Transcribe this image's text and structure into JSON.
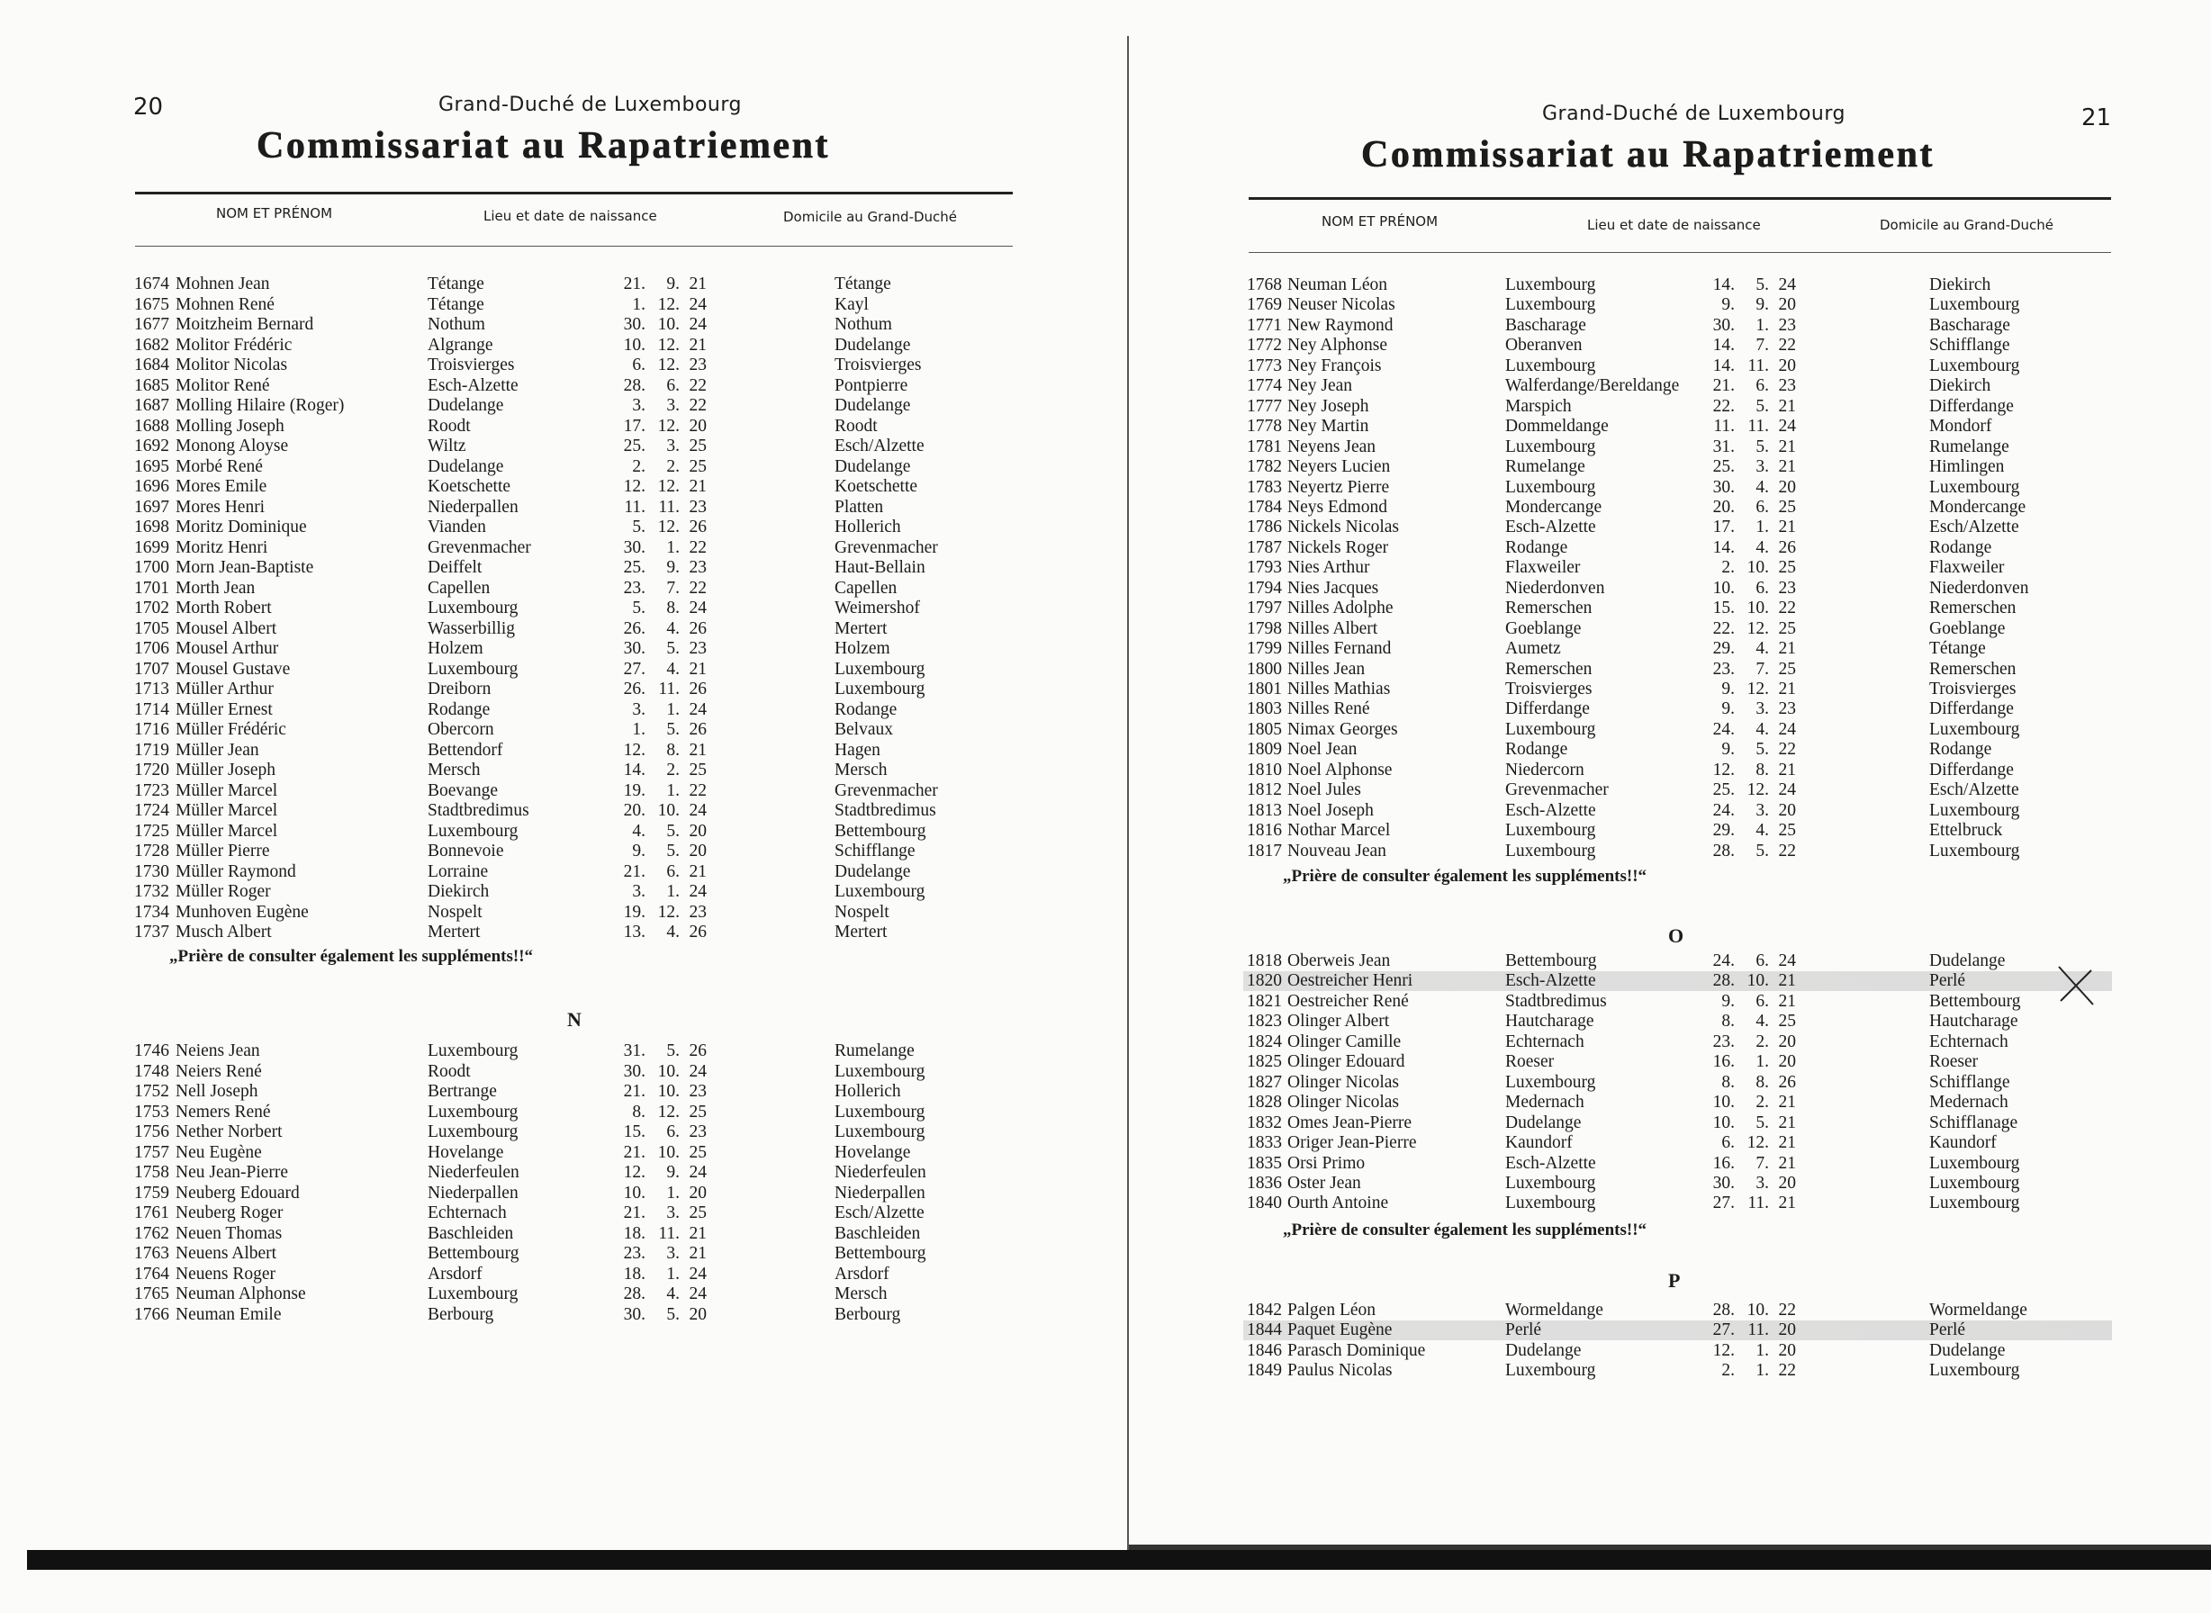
{
  "left_page": {
    "page_number": "20",
    "country": "Grand-Duché de Luxembourg",
    "title": "Commissariat au Rapatriement",
    "columns": [
      "NOM ET PRÉNOM",
      "Lieu et date de naissance",
      "Domicile au Grand-Duché"
    ],
    "sections": [
      {
        "letter": "",
        "rows": [
          [
            "1674",
            "Mohnen Jean",
            "Tétange",
            "21. 9. 21",
            "Tétange"
          ],
          [
            "1675",
            "Mohnen René",
            "Tétange",
            "1. 12. 24",
            "Kayl"
          ],
          [
            "1677",
            "Moitzheim Bernard",
            "Nothum",
            "30. 10. 24",
            "Nothum"
          ],
          [
            "1682",
            "Molitor Frédéric",
            "Algrange",
            "10. 12. 21",
            "Dudelange"
          ],
          [
            "1684",
            "Molitor Nicolas",
            "Troisvierges",
            "6. 12. 23",
            "Troisvierges"
          ],
          [
            "1685",
            "Molitor René",
            "Esch-Alzette",
            "28. 6. 22",
            "Pontpierre"
          ],
          [
            "1687",
            "Molling Hilaire (Roger)",
            "Dudelange",
            "3. 3. 22",
            "Dudelange"
          ],
          [
            "1688",
            "Molling Joseph",
            "Roodt",
            "17. 12. 20",
            "Roodt"
          ],
          [
            "1692",
            "Monong Aloyse",
            "Wiltz",
            "25. 3. 25",
            "Esch/Alzette"
          ],
          [
            "1695",
            "Morbé René",
            "Dudelange",
            "2. 2. 25",
            "Dudelange"
          ],
          [
            "1696",
            "Mores Emile",
            "Koetschette",
            "12. 12. 21",
            "Koetschette"
          ],
          [
            "1697",
            "Mores Henri",
            "Niederpallen",
            "11. 11. 23",
            "Platten"
          ],
          [
            "1698",
            "Moritz Dominique",
            "Vianden",
            "5. 12. 26",
            "Hollerich"
          ],
          [
            "1699",
            "Moritz Henri",
            "Grevenmacher",
            "30. 1. 22",
            "Grevenmacher"
          ],
          [
            "1700",
            "Morn Jean-Baptiste",
            "Deiffelt",
            "25. 9. 23",
            "Haut-Bellain"
          ],
          [
            "1701",
            "Morth Jean",
            "Capellen",
            "23. 7. 22",
            "Capellen"
          ],
          [
            "1702",
            "Morth Robert",
            "Luxembourg",
            "5. 8. 24",
            "Weimershof"
          ],
          [
            "1705",
            "Mousel Albert",
            "Wasserbillig",
            "26. 4. 26",
            "Mertert"
          ],
          [
            "1706",
            "Mousel Arthur",
            "Holzem",
            "30. 5. 23",
            "Holzem"
          ],
          [
            "1707",
            "Mousel Gustave",
            "Luxembourg",
            "27. 4. 21",
            "Luxembourg"
          ],
          [
            "1713",
            "Müller Arthur",
            "Dreiborn",
            "26. 11. 26",
            "Luxembourg"
          ],
          [
            "1714",
            "Müller Ernest",
            "Rodange",
            "3. 1. 24",
            "Rodange"
          ],
          [
            "1716",
            "Müller Frédéric",
            "Obercorn",
            "1. 5. 26",
            "Belvaux"
          ],
          [
            "1719",
            "Müller Jean",
            "Bettendorf",
            "12. 8. 21",
            "Hagen"
          ],
          [
            "1720",
            "Müller Joseph",
            "Mersch",
            "14. 2. 25",
            "Mersch"
          ],
          [
            "1723",
            "Müller Marcel",
            "Boevange",
            "19. 1. 22",
            "Grevenmacher"
          ],
          [
            "1724",
            "Müller Marcel",
            "Stadtbredimus",
            "20. 10. 24",
            "Stadtbredimus"
          ],
          [
            "1725",
            "Müller Marcel",
            "Luxembourg",
            "4. 5. 20",
            "Bettembourg"
          ],
          [
            "1728",
            "Müller Pierre",
            "Bonnevoie",
            "9. 5. 20",
            "Schifflange"
          ],
          [
            "1730",
            "Müller Raymond",
            "Lorraine",
            "21. 6. 21",
            "Dudelange"
          ],
          [
            "1732",
            "Müller Roger",
            "Diekirch",
            "3. 1. 24",
            "Luxembourg"
          ],
          [
            "1734",
            "Munhoven Eugène",
            "Nospelt",
            "19. 12. 23",
            "Nospelt"
          ],
          [
            "1737",
            "Musch Albert",
            "Mertert",
            "13. 4. 26",
            "Mertert"
          ]
        ],
        "note": "„Prière de consulter également les suppléments!!“"
      },
      {
        "letter": "N",
        "rows": [
          [
            "1746",
            "Neiens Jean",
            "Luxembourg",
            "31. 5. 26",
            "Rumelange"
          ],
          [
            "1748",
            "Neiers René",
            "Roodt",
            "30. 10. 24",
            "Luxembourg"
          ],
          [
            "1752",
            "Nell Joseph",
            "Bertrange",
            "21. 10. 23",
            "Hollerich"
          ],
          [
            "1753",
            "Nemers René",
            "Luxembourg",
            "8. 12. 25",
            "Luxembourg"
          ],
          [
            "1756",
            "Nether Norbert",
            "Luxembourg",
            "15. 6. 23",
            "Luxembourg"
          ],
          [
            "1757",
            "Neu Eugène",
            "Hovelange",
            "21. 10. 25",
            "Hovelange"
          ],
          [
            "1758",
            "Neu Jean-Pierre",
            "Niederfeulen",
            "12. 9. 24",
            "Niederfeulen"
          ],
          [
            "1759",
            "Neuberg Edouard",
            "Niederpallen",
            "10. 1. 20",
            "Niederpallen"
          ],
          [
            "1761",
            "Neuberg Roger",
            "Echternach",
            "21. 3. 25",
            "Esch/Alzette"
          ],
          [
            "1762",
            "Neuen Thomas",
            "Baschleiden",
            "18. 11. 21",
            "Baschleiden"
          ],
          [
            "1763",
            "Neuens Albert",
            "Bettembourg",
            "23. 3. 21",
            "Bettembourg"
          ],
          [
            "1764",
            "Neuens Roger",
            "Arsdorf",
            "18. 1. 24",
            "Arsdorf"
          ],
          [
            "1765",
            "Neuman Alphonse",
            "Luxembourg",
            "28. 4. 24",
            "Mersch"
          ],
          [
            "1766",
            "Neuman Emile",
            "Berbourg",
            "30. 5. 20",
            "Berbourg"
          ]
        ],
        "note": ""
      }
    ]
  },
  "right_page": {
    "page_number": "21",
    "country": "Grand-Duché de Luxembourg",
    "title": "Commissariat au Rapatriement",
    "columns": [
      "NOM ET PRÉNOM",
      "Lieu et date de naissance",
      "Domicile au Grand-Duché"
    ],
    "sections": [
      {
        "letter": "",
        "rows": [
          [
            "1768",
            "Neuman Léon",
            "Luxembourg",
            "14. 5. 24",
            "Diekirch"
          ],
          [
            "1769",
            "Neuser Nicolas",
            "Luxembourg",
            "9. 9. 20",
            "Luxembourg"
          ],
          [
            "1771",
            "New Raymond",
            "Bascharage",
            "30. 1. 23",
            "Bascharage"
          ],
          [
            "1772",
            "Ney Alphonse",
            "Oberanven",
            "14. 7. 22",
            "Schifflange"
          ],
          [
            "1773",
            "Ney François",
            "Luxembourg",
            "14. 11. 20",
            "Luxembourg"
          ],
          [
            "1774",
            "Ney Jean",
            "Walferdange/Bereldange",
            "21. 6. 23",
            "Diekirch"
          ],
          [
            "1777",
            "Ney Joseph",
            "Marspich",
            "22. 5. 21",
            "Differdange"
          ],
          [
            "1778",
            "Ney Martin",
            "Dommeldange",
            "11. 11. 24",
            "Mondorf"
          ],
          [
            "1781",
            "Neyens Jean",
            "Luxembourg",
            "31. 5. 21",
            "Rumelange"
          ],
          [
            "1782",
            "Neyers Lucien",
            "Rumelange",
            "25. 3. 21",
            "Himlingen"
          ],
          [
            "1783",
            "Neyertz Pierre",
            "Luxembourg",
            "30. 4. 20",
            "Luxembourg"
          ],
          [
            "1784",
            "Neys Edmond",
            "Mondercange",
            "20. 6. 25",
            "Mondercange"
          ],
          [
            "1786",
            "Nickels Nicolas",
            "Esch-Alzette",
            "17. 1. 21",
            "Esch/Alzette"
          ],
          [
            "1787",
            "Nickels Roger",
            "Rodange",
            "14. 4. 26",
            "Rodange"
          ],
          [
            "1793",
            "Nies Arthur",
            "Flaxweiler",
            "2. 10. 25",
            "Flaxweiler"
          ],
          [
            "1794",
            "Nies Jacques",
            "Niederdonven",
            "10. 6. 23",
            "Niederdonven"
          ],
          [
            "1797",
            "Nilles Adolphe",
            "Remerschen",
            "15. 10. 22",
            "Remerschen"
          ],
          [
            "1798",
            "Nilles Albert",
            "Goeblange",
            "22. 12. 25",
            "Goeblange"
          ],
          [
            "1799",
            "Nilles Fernand",
            "Aumetz",
            "29. 4. 21",
            "Tétange"
          ],
          [
            "1800",
            "Nilles Jean",
            "Remerschen",
            "23. 7. 25",
            "Remerschen"
          ],
          [
            "1801",
            "Nilles Mathias",
            "Troisvierges",
            "9. 12. 21",
            "Troisvierges"
          ],
          [
            "1803",
            "Nilles René",
            "Differdange",
            "9. 3. 23",
            "Differdange"
          ],
          [
            "1805",
            "Nimax Georges",
            "Luxembourg",
            "24. 4. 24",
            "Luxembourg"
          ],
          [
            "1809",
            "Noel Jean",
            "Rodange",
            "9. 5. 22",
            "Rodange"
          ],
          [
            "1810",
            "Noel Alphonse",
            "Niedercorn",
            "12. 8. 21",
            "Differdange"
          ],
          [
            "1812",
            "Noel Jules",
            "Grevenmacher",
            "25. 12. 24",
            "Esch/Alzette"
          ],
          [
            "1813",
            "Noel Joseph",
            "Esch-Alzette",
            "24. 3. 20",
            "Luxembourg"
          ],
          [
            "1816",
            "Nothar Marcel",
            "Luxembourg",
            "29. 4. 25",
            "Ettelbruck"
          ],
          [
            "1817",
            "Nouveau Jean",
            "Luxembourg",
            "28. 5. 22",
            "Luxembourg"
          ]
        ],
        "note": "„Prière de consulter également les suppléments!!“"
      },
      {
        "letter": "O",
        "rows": [
          [
            "1818",
            "Oberweis Jean",
            "Bettembourg",
            "24. 6. 24",
            "Dudelange"
          ],
          [
            "1820",
            "Oestreicher Henri",
            "Esch-Alzette",
            "28. 10. 21",
            "Perlé"
          ],
          [
            "1821",
            "Oestreicher René",
            "Stadtbredimus",
            "9. 6. 21",
            "Bettembourg"
          ],
          [
            "1823",
            "Olinger Albert",
            "Hautcharage",
            "8. 4. 25",
            "Hautcharage"
          ],
          [
            "1824",
            "Olinger Camille",
            "Echternach",
            "23. 2. 20",
            "Echternach"
          ],
          [
            "1825",
            "Olinger Edouard",
            "Roeser",
            "16. 1. 20",
            "Roeser"
          ],
          [
            "1827",
            "Olinger Nicolas",
            "Luxembourg",
            "8. 8. 26",
            "Schifflange"
          ],
          [
            "1828",
            "Olinger Nicolas",
            "Medernach",
            "10. 2. 21",
            "Medernach"
          ],
          [
            "1832",
            "Omes Jean-Pierre",
            "Dudelange",
            "10. 5. 21",
            "Schifflanage"
          ],
          [
            "1833",
            "Origer Jean-Pierre",
            "Kaundorf",
            "6. 12. 21",
            "Kaundorf"
          ],
          [
            "1835",
            "Orsi Primo",
            "Esch-Alzette",
            "16. 7. 21",
            "Luxembourg"
          ],
          [
            "1836",
            "Oster Jean",
            "Luxembourg",
            "30. 3. 20",
            "Luxembourg"
          ],
          [
            "1840",
            "Ourth Antoine",
            "Luxembourg",
            "27. 11. 21",
            "Luxembourg"
          ]
        ],
        "highlighted": [
          "1820"
        ],
        "note": "„Prière de consulter également les suppléments!!“"
      },
      {
        "letter": "P",
        "rows": [
          [
            "1842",
            "Palgen Léon",
            "Wormeldange",
            "28. 10. 22",
            "Wormeldange"
          ],
          [
            "1844",
            "Paquet Eugène",
            "Perlé",
            "27. 11. 20",
            "Perlé"
          ],
          [
            "1846",
            "Parasch Dominique",
            "Dudelange",
            "12. 1. 20",
            "Dudelange"
          ],
          [
            "1849",
            "Paulus Nicolas",
            "Luxembourg",
            "2. 1. 22",
            "Luxembourg"
          ]
        ],
        "highlighted": [
          "1844"
        ],
        "note": ""
      }
    ],
    "handwritten_mark": "X"
  }
}
